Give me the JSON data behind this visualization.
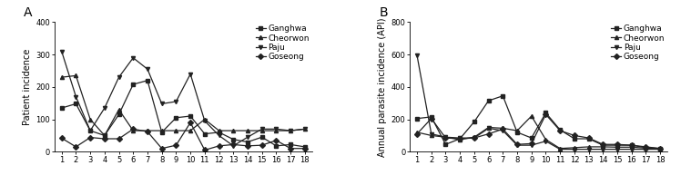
{
  "x": [
    1,
    2,
    3,
    4,
    5,
    6,
    7,
    8,
    9,
    10,
    11,
    12,
    13,
    14,
    15,
    16,
    17,
    18
  ],
  "panel_A": {
    "title": "A",
    "ylabel": "Patient incidence",
    "ylim": [
      0,
      400
    ],
    "yticks": [
      0,
      100,
      200,
      300,
      400
    ],
    "Ganghwa": [
      135,
      148,
      65,
      50,
      115,
      208,
      220,
      60,
      105,
      110,
      55,
      60,
      38,
      30,
      45,
      18,
      22,
      15
    ],
    "Cheorwon": [
      230,
      235,
      100,
      50,
      130,
      65,
      65,
      65,
      65,
      65,
      100,
      65,
      65,
      65,
      65,
      65,
      65,
      70
    ],
    "Paju": [
      310,
      170,
      65,
      135,
      230,
      290,
      255,
      148,
      155,
      240,
      95,
      50,
      18,
      45,
      70,
      70,
      65,
      70
    ],
    "Goseong": [
      42,
      15,
      44,
      40,
      40,
      70,
      62,
      10,
      20,
      90,
      5,
      18,
      22,
      18,
      20,
      35,
      10,
      10
    ]
  },
  "panel_B": {
    "title": "B",
    "ylabel": "Annual parasite incidence (API)",
    "ylim": [
      0,
      800
    ],
    "yticks": [
      0,
      200,
      400,
      600,
      800
    ],
    "Ganghwa": [
      205,
      215,
      45,
      80,
      185,
      315,
      345,
      120,
      85,
      240,
      135,
      80,
      80,
      40,
      40,
      40,
      25,
      20
    ],
    "Cheorwon": [
      120,
      100,
      90,
      75,
      90,
      150,
      145,
      130,
      220,
      75,
      20,
      25,
      30,
      30,
      28,
      28,
      22,
      20
    ],
    "Paju": [
      595,
      110,
      90,
      85,
      85,
      145,
      130,
      40,
      40,
      65,
      15,
      15,
      15,
      15,
      15,
      15,
      15,
      15
    ],
    "Goseong": [
      110,
      205,
      85,
      80,
      85,
      110,
      140,
      45,
      50,
      230,
      130,
      100,
      85,
      45,
      45,
      40,
      30,
      20
    ]
  },
  "markers": {
    "Ganghwa": "s",
    "Cheorwon": "^",
    "Paju": "v",
    "Goseong": "D"
  },
  "line_color": "#222222",
  "markersize": 3,
  "linewidth": 0.9,
  "tick_fontsize": 6,
  "ylabel_fontsize": 7,
  "legend_fontsize": 6.5,
  "panel_label_fontsize": 10
}
